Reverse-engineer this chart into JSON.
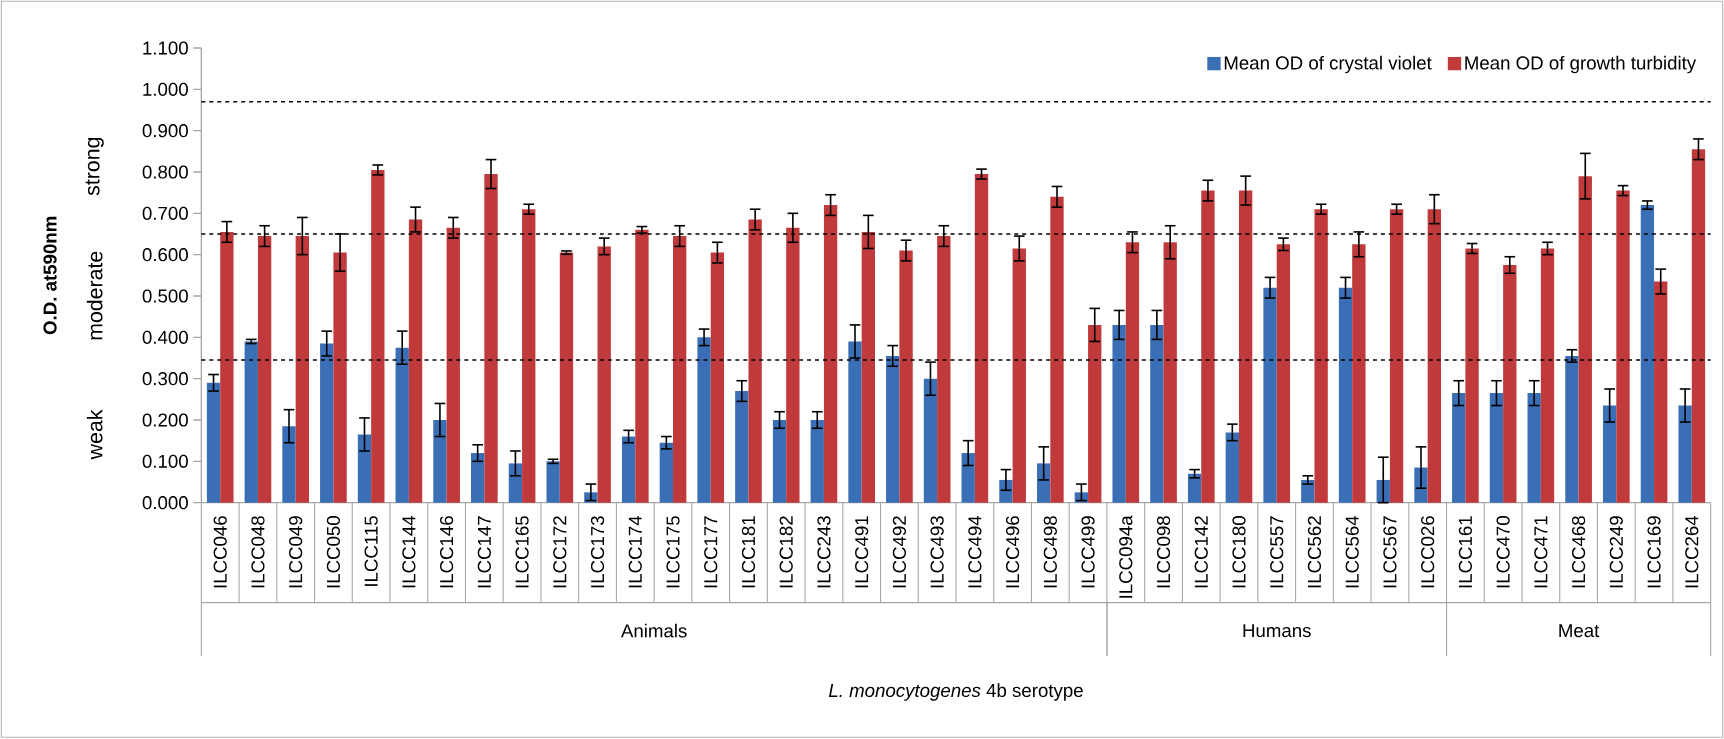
{
  "chart_data": {
    "type": "bar",
    "xlabel": "*L. monocytogenes* 4b serotype",
    "ylabel": "O.D. at590nm",
    "categories": [
      "ILCC046",
      "ILCC048",
      "ILCC049",
      "ILCC050",
      "ILCC115",
      "ILCC144",
      "ILCC146",
      "ILCC147",
      "ILCC165",
      "ILCC172",
      "ILCC173",
      "ILCC174",
      "ILCC175",
      "ILCC177",
      "ILCC181",
      "ILCC182",
      "ILCC243",
      "ILCC491",
      "ILCC492",
      "ILCC493",
      "ILCC494",
      "ILCC496",
      "ILCC498",
      "ILCC499",
      "ILCC094a",
      "ILCC098",
      "ILCC142",
      "ILCC180",
      "ILCC557",
      "ILCC562",
      "ILCC564",
      "ILCC567",
      "ILCC026",
      "ILCC161",
      "ILCC470",
      "ILCC471",
      "ILCC468",
      "ILCC249",
      "ILCC169",
      "ILCC264"
    ],
    "series": [
      {
        "name": "Mean OD of crystal violet",
        "color": "#3a6fb5",
        "values": [
          0.29,
          0.39,
          0.185,
          0.385,
          0.165,
          0.375,
          0.2,
          0.12,
          0.095,
          0.1,
          0.025,
          0.16,
          0.145,
          0.4,
          0.27,
          0.2,
          0.2,
          0.39,
          0.355,
          0.3,
          0.12,
          0.055,
          0.095,
          0.025,
          0.43,
          0.43,
          0.07,
          0.17,
          0.52,
          0.055,
          0.52,
          0.055,
          0.085,
          0.265,
          0.265,
          0.265,
          0.355,
          0.235,
          0.72,
          0.235
        ],
        "errors": [
          0.02,
          0.005,
          0.04,
          0.03,
          0.04,
          0.04,
          0.04,
          0.02,
          0.03,
          0.005,
          0.02,
          0.015,
          0.015,
          0.02,
          0.025,
          0.02,
          0.02,
          0.04,
          0.025,
          0.04,
          0.03,
          0.025,
          0.04,
          0.02,
          0.035,
          0.035,
          0.01,
          0.02,
          0.025,
          0.01,
          0.025,
          0.055,
          0.05,
          0.03,
          0.03,
          0.03,
          0.015,
          0.04,
          0.01,
          0.04
        ]
      },
      {
        "name": "Mean OD of growth turbidity",
        "color": "#c0393b",
        "values": [
          0.655,
          0.645,
          0.645,
          0.605,
          0.805,
          0.685,
          0.665,
          0.795,
          0.71,
          0.605,
          0.62,
          0.66,
          0.645,
          0.605,
          0.685,
          0.665,
          0.72,
          0.655,
          0.61,
          0.645,
          0.795,
          0.615,
          0.74,
          0.43,
          0.63,
          0.63,
          0.755,
          0.755,
          0.625,
          0.71,
          0.625,
          0.71,
          0.71,
          0.615,
          0.575,
          0.615,
          0.79,
          0.755,
          0.535,
          0.855
        ],
        "errors": [
          0.025,
          0.025,
          0.045,
          0.045,
          0.012,
          0.03,
          0.025,
          0.035,
          0.012,
          0.004,
          0.02,
          0.008,
          0.025,
          0.025,
          0.025,
          0.035,
          0.025,
          0.04,
          0.025,
          0.025,
          0.012,
          0.03,
          0.025,
          0.04,
          0.025,
          0.04,
          0.025,
          0.035,
          0.015,
          0.012,
          0.03,
          0.012,
          0.035,
          0.012,
          0.02,
          0.015,
          0.055,
          0.012,
          0.03,
          0.025
        ]
      }
    ],
    "ylim": [
      0,
      1.1
    ],
    "yticks": [
      {
        "value": 0,
        "label": "0.000"
      },
      {
        "value": 0.1,
        "label": "0.100"
      },
      {
        "value": 0.2,
        "label": "0.200"
      },
      {
        "value": 0.3,
        "label": "0.300"
      },
      {
        "value": 0.4,
        "label": "0.400"
      },
      {
        "value": 0.5,
        "label": "0.500"
      },
      {
        "value": 0.6,
        "label": "0.600"
      },
      {
        "value": 0.7,
        "label": "0.700"
      },
      {
        "value": 0.8,
        "label": "0.800"
      },
      {
        "value": 0.9,
        "label": "0.900"
      },
      {
        "value": 1.0,
        "label": "1.000"
      },
      {
        "value": 1.1,
        "label": "1.100"
      }
    ],
    "ref_lines": [
      {
        "axis": "y",
        "value": 0.97,
        "color": "#000000",
        "line_style": "dashed"
      },
      {
        "axis": "y",
        "value": 0.65,
        "color": "#000000",
        "line_style": "dashed"
      },
      {
        "axis": "y",
        "value": 0.345,
        "color": "#000000",
        "line_style": "dashed"
      }
    ],
    "annotations": [
      "strong",
      "moderate",
      "weak",
      "Animals",
      "Humans",
      "Meat"
    ],
    "legend": "top right"
  }
}
